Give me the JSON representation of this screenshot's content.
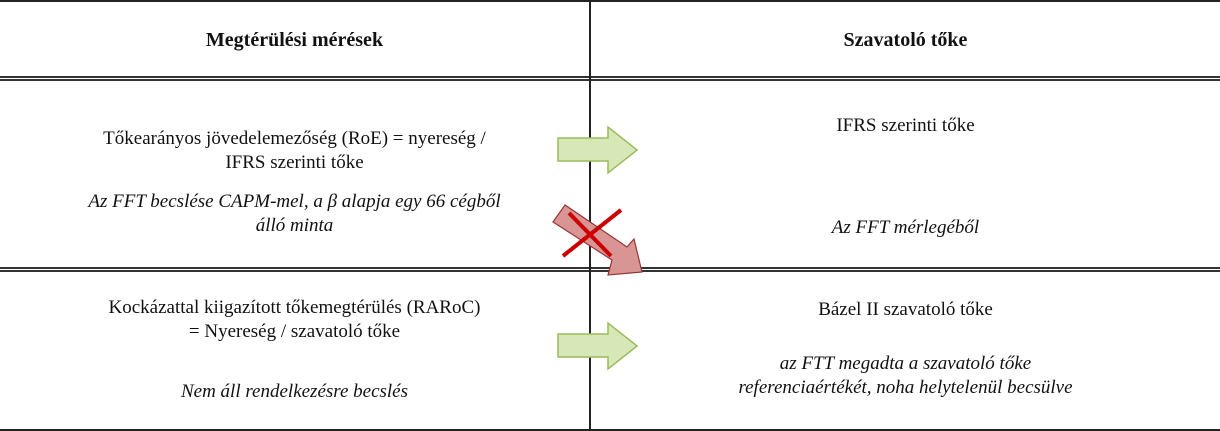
{
  "header": {
    "left": "Megtérülési mérések",
    "right": "Szavatoló tőke"
  },
  "row1": {
    "left_main": [
      "Tőkearányos jövedelemezőség (RoE) = nyereség /",
      "IFRS szerinti tőke"
    ],
    "left_note": [
      "Az FFT becslése CAPM-mel, a β alapja egy 66 cégből",
      "álló minta"
    ],
    "right_main": "IFRS szerinti tőke",
    "right_note": "Az FFT mérlegéből"
  },
  "row2": {
    "left_main": [
      "Kockázattal kiigazított tőkemegtérülés (RARoC)",
      "= Nyereség / szavatoló tőke"
    ],
    "left_note": "Nem áll rendelkezésre becslés",
    "right_main": "Bázel II szavatoló tőke",
    "right_note": [
      "az FTT megadta a szavatoló tőke",
      "referenciaértékét, noha helytelenül becsülve"
    ]
  },
  "colors": {
    "green_arrow_fill": "#d6e8b8",
    "green_arrow_stroke": "#9bbb59",
    "red_arrow_fill": "#d99594",
    "red_arrow_stroke": "#943634",
    "cross": "#cc0000"
  }
}
